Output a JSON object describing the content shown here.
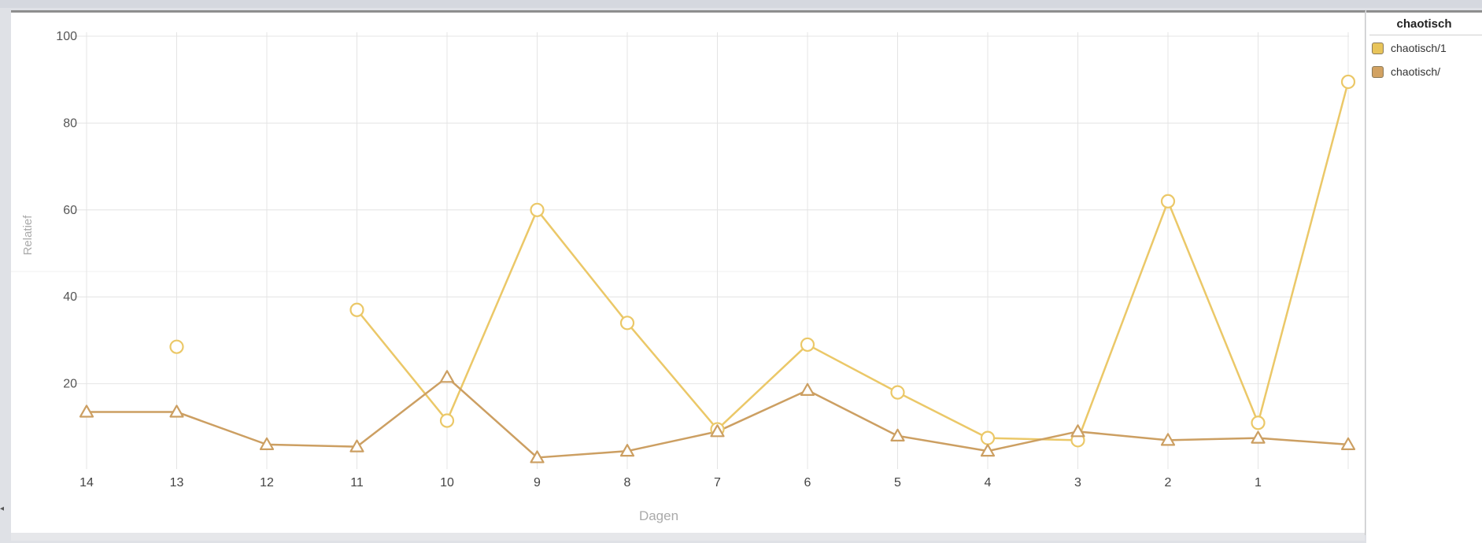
{
  "legend": {
    "title": "chaotisch",
    "items": [
      {
        "label": "chaotisch/1",
        "color": "#e8c45a"
      },
      {
        "label": "chaotisch/",
        "color": "#d2a262"
      }
    ]
  },
  "chart_data": {
    "type": "line",
    "xlabel": "Dagen",
    "ylabel": "Relatief",
    "categories": [
      "14",
      "13",
      "12",
      "11",
      "10",
      "9",
      "8",
      "7",
      "6",
      "5",
      "4",
      "3",
      "2",
      "1",
      ""
    ],
    "ylim": [
      0,
      100
    ],
    "yticks": [
      20,
      40,
      60,
      80,
      100
    ],
    "grid": true,
    "legend_position": "right",
    "series": [
      {
        "name": "chaotisch/1",
        "color": "#ebc868",
        "marker": "circle",
        "values": [
          null,
          28.5,
          null,
          37,
          11.5,
          60,
          34,
          9.5,
          29,
          18,
          7.5,
          7,
          62,
          11,
          89.5
        ]
      },
      {
        "name": "chaotisch/",
        "color": "#cc9f62",
        "marker": "triangle",
        "values": [
          13.5,
          13.5,
          6,
          5.5,
          21.5,
          3,
          4.5,
          9,
          18.5,
          8,
          4.5,
          9,
          7,
          7.5,
          6
        ]
      }
    ]
  }
}
